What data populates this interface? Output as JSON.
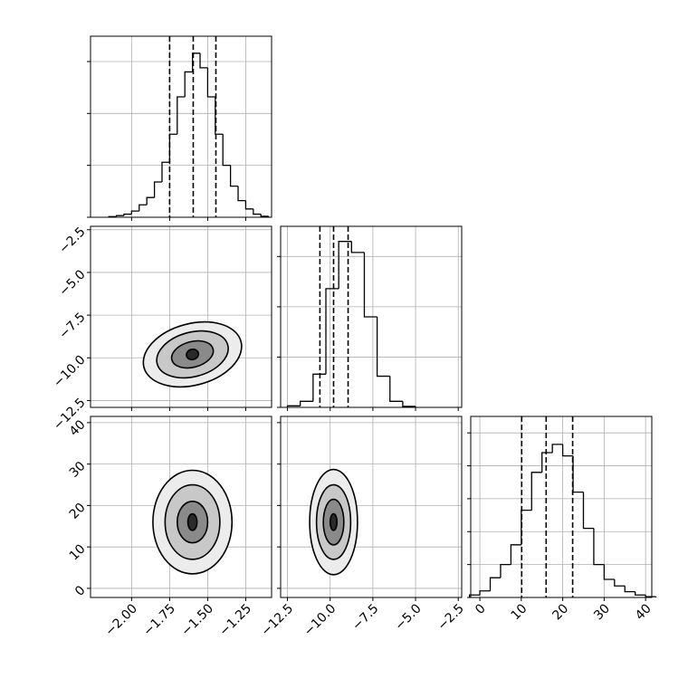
{
  "chart_data": {
    "type": "corner",
    "grid": true,
    "line_color": "#000000",
    "params": [
      {
        "xlim": [
          -2.27,
          -1.08
        ],
        "xticks": [
          {
            "value": -2.0,
            "label": "−2.00"
          },
          {
            "value": -1.75,
            "label": "−1.75"
          },
          {
            "value": -1.5,
            "label": "−1.50"
          },
          {
            "value": -1.25,
            "label": "−1.25"
          }
        ]
      },
      {
        "xlim": [
          -12.9,
          -2.3
        ],
        "xticks": [
          {
            "value": -12.5,
            "label": "−12.5"
          },
          {
            "value": -10.0,
            "label": "−10.0"
          },
          {
            "value": -7.5,
            "label": "−7.5"
          },
          {
            "value": -5.0,
            "label": "−5.0"
          },
          {
            "value": -2.5,
            "label": "−2.5"
          }
        ]
      },
      {
        "xlim": [
          -2.2,
          41.5
        ],
        "xticks": [
          0,
          10,
          20,
          30,
          40
        ]
      }
    ],
    "hists": [
      {
        "bins": [
          -2.15,
          -2.1,
          -2.05,
          -2.0,
          -1.95,
          -1.9,
          -1.85,
          -1.8,
          -1.75,
          -1.7,
          -1.65,
          -1.6,
          -1.55,
          -1.5,
          -1.45,
          -1.4,
          -1.35,
          -1.3,
          -1.25,
          -1.2,
          -1.15,
          -1.1
        ],
        "values": [
          3,
          8,
          15,
          30,
          60,
          95,
          170,
          265,
          400,
          580,
          700,
          790,
          720,
          580,
          400,
          250,
          150,
          80,
          40,
          15,
          5
        ],
        "ylim": [
          0,
          872
        ],
        "yticks": [
          0,
          250,
          500,
          750
        ],
        "quantiles": [
          -1.75,
          -1.595,
          -1.446
        ]
      },
      {
        "bins": [
          -12.5,
          -11.75,
          -11.0,
          -10.25,
          -9.5,
          -8.75,
          -8.0,
          -7.25,
          -6.5,
          -5.75,
          -5.0
        ],
        "values": [
          15,
          60,
          330,
          1180,
          1650,
          1540,
          900,
          310,
          60,
          10
        ],
        "ylim": [
          0,
          1800
        ],
        "yticks": [
          0,
          500,
          1000,
          1500
        ],
        "quantiles": [
          -10.6,
          -9.8,
          -8.95
        ]
      },
      {
        "bins": [
          -2.5,
          0,
          2.5,
          5,
          7.5,
          10,
          12.5,
          15,
          17.5,
          20,
          22.5,
          25,
          27.5,
          30,
          32.5,
          35,
          37.5,
          40,
          42.5
        ],
        "values": [
          15,
          40,
          120,
          200,
          320,
          530,
          760,
          880,
          930,
          860,
          640,
          420,
          200,
          110,
          70,
          35,
          15,
          5
        ],
        "ylim": [
          0,
          1100
        ],
        "yticks": [
          0,
          200,
          400,
          600,
          800,
          1000
        ],
        "quantiles": [
          10.1,
          16.0,
          22.4
        ]
      }
    ],
    "pairs": [
      {
        "center": [
          -1.6,
          -9.8
        ],
        "angle": -15,
        "contours": [
          {
            "rx": 0.33,
            "ry": 1.8
          },
          {
            "rx": 0.24,
            "ry": 1.3
          },
          {
            "rx": 0.14,
            "ry": 0.75
          },
          {
            "rx": 0.04,
            "ry": 0.3
          }
        ]
      },
      {
        "center": [
          -1.6,
          16
        ],
        "angle": 0,
        "contours": [
          {
            "rx": 0.26,
            "ry": 12.5
          },
          {
            "rx": 0.18,
            "ry": 9
          },
          {
            "rx": 0.1,
            "ry": 5
          },
          {
            "rx": 0.03,
            "ry": 2
          }
        ]
      },
      {
        "center": [
          -9.8,
          16
        ],
        "angle": 0,
        "contours": [
          {
            "rx": 1.4,
            "ry": 12.7
          },
          {
            "rx": 1.0,
            "ry": 9
          },
          {
            "rx": 0.6,
            "ry": 5.5
          },
          {
            "rx": 0.2,
            "ry": 2
          }
        ]
      }
    ]
  }
}
